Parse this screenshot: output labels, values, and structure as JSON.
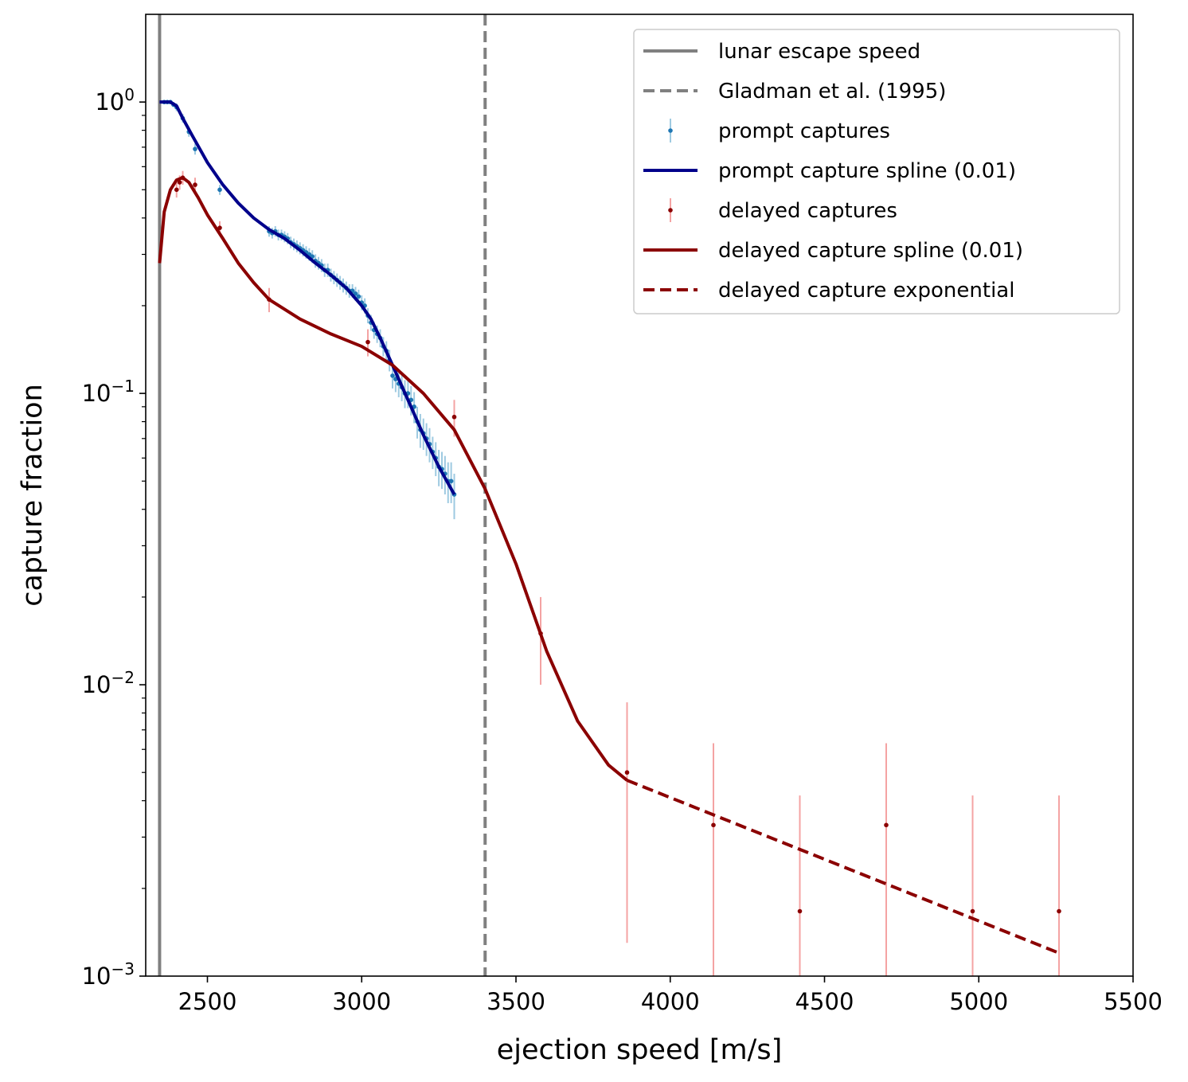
{
  "chart_data": {
    "type": "scatter",
    "xlabel": "ejection speed [m/s]",
    "ylabel": "capture fraction",
    "xlim": [
      2300,
      5500
    ],
    "ylim": [
      0.001,
      2.0
    ],
    "yscale": "log",
    "grid": false,
    "legend_position": "top-right",
    "xticks": [
      {
        "value": 2500,
        "label": "2500"
      },
      {
        "value": 3000,
        "label": "3000"
      },
      {
        "value": 3500,
        "label": "3500"
      },
      {
        "value": 4000,
        "label": "4000"
      },
      {
        "value": 4500,
        "label": "4500"
      },
      {
        "value": 5000,
        "label": "5000"
      },
      {
        "value": 5500,
        "label": "5500"
      }
    ],
    "yticks": [
      {
        "value": 1,
        "base": "10",
        "exp": "0"
      },
      {
        "value": 0.1,
        "base": "10",
        "exp": "−1"
      },
      {
        "value": 0.01,
        "base": "10",
        "exp": "−2"
      },
      {
        "value": 0.001,
        "base": "10",
        "exp": "−3"
      }
    ],
    "reference_lines": [
      {
        "name": "lunar escape speed",
        "x": 2345,
        "color": "#808080",
        "style": "solid"
      },
      {
        "name": "Gladman et al. (1995)",
        "x": 3400,
        "color": "#808080",
        "style": "dashed"
      }
    ],
    "series": [
      {
        "name": "prompt captures",
        "kind": "points",
        "color": "#1f77b4",
        "errcolor": "#9ecae1",
        "points": [
          [
            2360,
            1.0,
            0.0
          ],
          [
            2370,
            1.0,
            0.0
          ],
          [
            2380,
            1.0,
            0.0
          ],
          [
            2390,
            0.98,
            0.02
          ],
          [
            2400,
            0.96,
            0.03
          ],
          [
            2420,
            0.88,
            0.03
          ],
          [
            2440,
            0.79,
            0.03
          ],
          [
            2460,
            0.69,
            0.03
          ],
          [
            2540,
            0.5,
            0.02
          ],
          [
            2700,
            0.36,
            0.015
          ],
          [
            2710,
            0.355,
            0.015
          ],
          [
            2720,
            0.36,
            0.015
          ],
          [
            2730,
            0.35,
            0.015
          ],
          [
            2740,
            0.35,
            0.015
          ],
          [
            2750,
            0.345,
            0.015
          ],
          [
            2760,
            0.34,
            0.015
          ],
          [
            2770,
            0.33,
            0.015
          ],
          [
            2780,
            0.325,
            0.015
          ],
          [
            2790,
            0.32,
            0.015
          ],
          [
            2800,
            0.315,
            0.015
          ],
          [
            2810,
            0.31,
            0.015
          ],
          [
            2820,
            0.305,
            0.015
          ],
          [
            2830,
            0.3,
            0.015
          ],
          [
            2840,
            0.295,
            0.015
          ],
          [
            2850,
            0.285,
            0.015
          ],
          [
            2860,
            0.28,
            0.014
          ],
          [
            2870,
            0.275,
            0.014
          ],
          [
            2880,
            0.265,
            0.014
          ],
          [
            2890,
            0.265,
            0.014
          ],
          [
            2900,
            0.255,
            0.013
          ],
          [
            2910,
            0.25,
            0.013
          ],
          [
            2920,
            0.245,
            0.013
          ],
          [
            2930,
            0.24,
            0.013
          ],
          [
            2940,
            0.235,
            0.013
          ],
          [
            2950,
            0.23,
            0.012
          ],
          [
            2960,
            0.225,
            0.012
          ],
          [
            2970,
            0.225,
            0.012
          ],
          [
            2980,
            0.22,
            0.012
          ],
          [
            2990,
            0.215,
            0.012
          ],
          [
            3000,
            0.205,
            0.012
          ],
          [
            3010,
            0.2,
            0.012
          ],
          [
            3020,
            0.185,
            0.011
          ],
          [
            3030,
            0.175,
            0.011
          ],
          [
            3040,
            0.165,
            0.011
          ],
          [
            3050,
            0.16,
            0.011
          ],
          [
            3060,
            0.155,
            0.011
          ],
          [
            3070,
            0.145,
            0.011
          ],
          [
            3080,
            0.14,
            0.011
          ],
          [
            3090,
            0.13,
            0.011
          ],
          [
            3100,
            0.115,
            0.011
          ],
          [
            3110,
            0.112,
            0.011
          ],
          [
            3120,
            0.108,
            0.011
          ],
          [
            3130,
            0.105,
            0.011
          ],
          [
            3140,
            0.1,
            0.011
          ],
          [
            3150,
            0.1,
            0.011
          ],
          [
            3160,
            0.095,
            0.011
          ],
          [
            3170,
            0.09,
            0.011
          ],
          [
            3180,
            0.08,
            0.01
          ],
          [
            3190,
            0.075,
            0.01
          ],
          [
            3200,
            0.073,
            0.009
          ],
          [
            3210,
            0.07,
            0.009
          ],
          [
            3220,
            0.067,
            0.009
          ],
          [
            3230,
            0.063,
            0.008
          ],
          [
            3240,
            0.06,
            0.008
          ],
          [
            3250,
            0.056,
            0.008
          ],
          [
            3260,
            0.055,
            0.008
          ],
          [
            3270,
            0.053,
            0.008
          ],
          [
            3280,
            0.05,
            0.008
          ],
          [
            3290,
            0.05,
            0.008
          ],
          [
            3300,
            0.045,
            0.008
          ]
        ]
      },
      {
        "name": "prompt capture spline (0.01)",
        "kind": "line",
        "color": "#00008b",
        "style": "solid",
        "x": [
          2345,
          2360,
          2380,
          2400,
          2420,
          2450,
          2500,
          2550,
          2600,
          2650,
          2700,
          2750,
          2800,
          2850,
          2900,
          2950,
          3000,
          3030,
          3060,
          3100,
          3150,
          3200,
          3250,
          3300
        ],
        "y": [
          1.0,
          1.0,
          1.0,
          0.97,
          0.88,
          0.77,
          0.62,
          0.52,
          0.45,
          0.4,
          0.365,
          0.34,
          0.31,
          0.28,
          0.255,
          0.23,
          0.2,
          0.18,
          0.155,
          0.125,
          0.095,
          0.072,
          0.056,
          0.045
        ]
      },
      {
        "name": "delayed captures",
        "kind": "points",
        "color": "#8b0000",
        "errcolor": "#f4a3a3",
        "points": [
          [
            2400,
            0.5,
            0.03
          ],
          [
            2410,
            0.53,
            0.03
          ],
          [
            2420,
            0.55,
            0.03
          ],
          [
            2460,
            0.52,
            0.03
          ],
          [
            2540,
            0.37,
            0.02
          ],
          [
            2700,
            0.21,
            0.02
          ],
          [
            3020,
            0.15,
            0.016
          ],
          [
            3300,
            0.083,
            0.012
          ],
          [
            3580,
            0.015,
            0.005
          ],
          [
            3860,
            0.005,
            0.0037
          ],
          [
            4140,
            0.0033,
            0.003
          ],
          [
            4420,
            0.00167,
            0.0025
          ],
          [
            4700,
            0.0033,
            0.003
          ],
          [
            4980,
            0.00167,
            0.0025
          ],
          [
            5260,
            0.00167,
            0.0025
          ]
        ]
      },
      {
        "name": "delayed capture spline (0.01)",
        "kind": "line",
        "color": "#8b0000",
        "style": "solid",
        "x": [
          2345,
          2360,
          2380,
          2400,
          2420,
          2440,
          2470,
          2500,
          2550,
          2600,
          2650,
          2700,
          2800,
          2900,
          3000,
          3100,
          3200,
          3300,
          3400,
          3500,
          3600,
          3700,
          3800,
          3860
        ],
        "y": [
          0.28,
          0.42,
          0.5,
          0.54,
          0.55,
          0.53,
          0.47,
          0.41,
          0.34,
          0.28,
          0.24,
          0.21,
          0.18,
          0.16,
          0.145,
          0.125,
          0.1,
          0.075,
          0.047,
          0.026,
          0.013,
          0.0075,
          0.0053,
          0.0047
        ]
      },
      {
        "name": "delayed capture exponential",
        "kind": "line",
        "color": "#8b0000",
        "style": "dashed",
        "x": [
          3860,
          5260
        ],
        "y": [
          0.0047,
          0.0012
        ]
      }
    ]
  }
}
